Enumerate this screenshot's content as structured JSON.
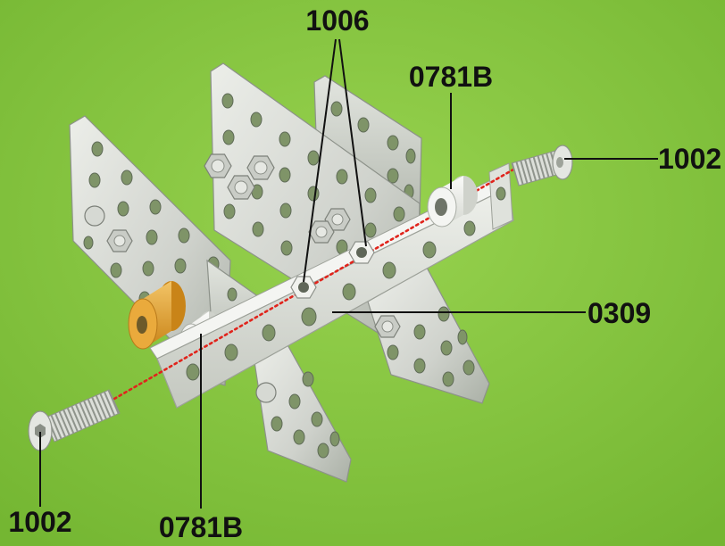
{
  "labels": {
    "nut_callout": "1006",
    "spacer_top_callout": "0781B",
    "bolt_right_callout": "1002",
    "bar_callout": "0309",
    "bolt_left_callout": "1002",
    "spacer_bottom_callout": "0781B"
  },
  "colors": {
    "background": "#84c441",
    "metal": "#cfd2cc",
    "spacer_orange": "#e8a838",
    "assembly_axis": "#e0241c",
    "label_text": "#111111"
  }
}
